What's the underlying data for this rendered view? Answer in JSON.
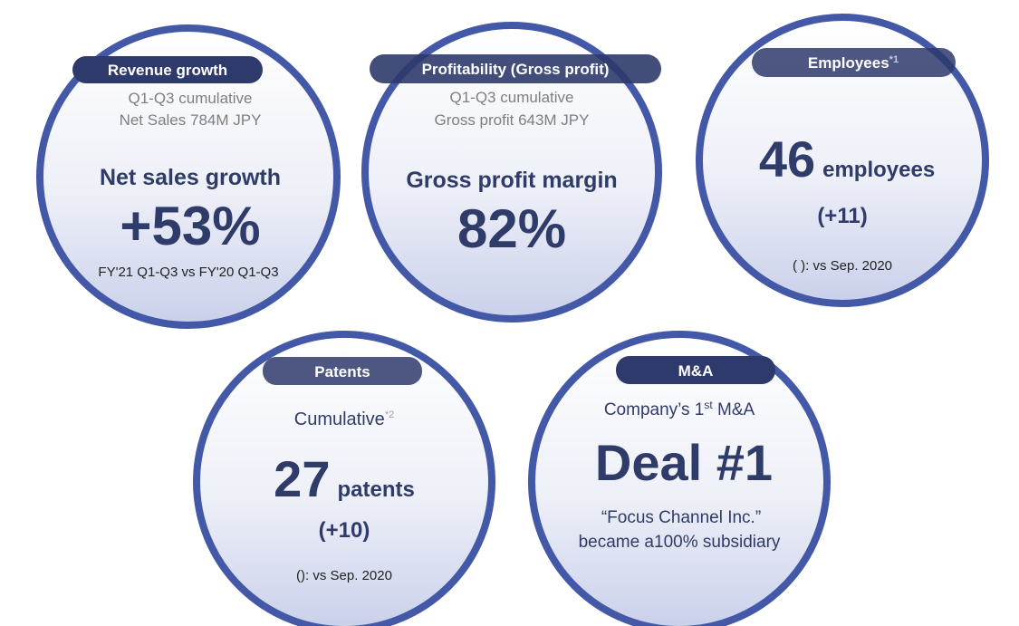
{
  "circles": [
    {
      "badge": "Revenue growth",
      "lines": [
        "Q1-Q3 cumulative",
        "Net Sales 784M JPY"
      ],
      "headline": "Net sales growth",
      "big": "+53%",
      "note": "FY'21 Q1-Q3 vs FY'20 Q1-Q3"
    },
    {
      "badge": "Profitability (Gross profit)",
      "lines": [
        "Q1-Q3 cumulative",
        "Gross profit 643M JPY"
      ],
      "headline": "Gross profit margin",
      "big": "82%"
    },
    {
      "badge": "Employees",
      "badge_sup": "*1",
      "big": "46",
      "unit": "employees",
      "change": "(+11)",
      "note": "( ): vs Sep. 2020"
    },
    {
      "badge": "Patents",
      "sub": "Cumulative",
      "sub_sup": "*2",
      "big": "27",
      "unit": "patents",
      "change": "(+10)",
      "note": "(): vs Sep. 2020"
    },
    {
      "badge": "M&A",
      "sub": "Company’s 1",
      "sub_sup": "st",
      "sub_after": " M&A",
      "big": "Deal #1",
      "lines": [
        "“Focus Channel Inc.”",
        "became a100% subsidiary"
      ]
    }
  ]
}
